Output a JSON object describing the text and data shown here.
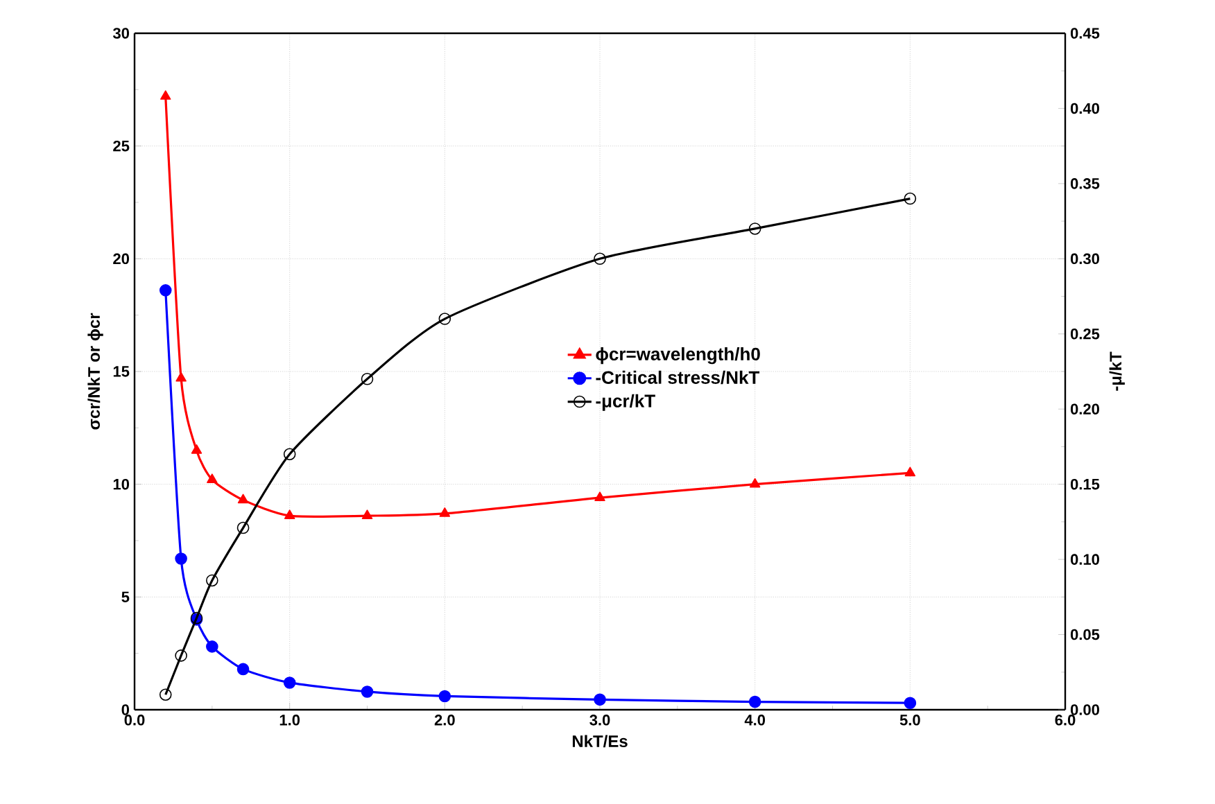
{
  "chart_data": {
    "type": "line",
    "xlabel": "NkT/Es",
    "ylabel": "σcr/NkT  or  ϕcr",
    "y2label": "-μ/kT",
    "xlim": [
      0,
      6
    ],
    "xticks": [
      {
        "value": 0,
        "label": "0.0"
      },
      {
        "value": 1,
        "label": "1.0"
      },
      {
        "value": 2,
        "label": "2.0"
      },
      {
        "value": 3,
        "label": "3.0"
      },
      {
        "value": 4,
        "label": "4.0"
      },
      {
        "value": 5,
        "label": "5.0"
      },
      {
        "value": 6,
        "label": "6.0"
      }
    ],
    "ylim": [
      0,
      30
    ],
    "yticks": [
      0,
      5,
      10,
      15,
      20,
      25,
      30
    ],
    "y2lim": [
      0,
      0.45
    ],
    "y2ticks": [
      {
        "value": 0,
        "label": "0.00"
      },
      {
        "value": 0.05,
        "label": "0.05"
      },
      {
        "value": 0.1,
        "label": "0.10"
      },
      {
        "value": 0.15,
        "label": "0.15"
      },
      {
        "value": 0.2,
        "label": "0.20"
      },
      {
        "value": 0.25,
        "label": "0.25"
      },
      {
        "value": 0.3,
        "label": "0.30"
      },
      {
        "value": 0.35,
        "label": "0.35"
      },
      {
        "value": 0.4,
        "label": "0.40"
      },
      {
        "value": 0.45,
        "label": "0.45"
      }
    ],
    "grid": true,
    "legend": "center",
    "line_style": "solid",
    "series": [
      {
        "name": "ϕcr=wavelength/h0",
        "color": "#ff0000",
        "marker": "triangle",
        "x": [
          0.2,
          0.3,
          0.4,
          0.5,
          0.7,
          1.0,
          1.5,
          2.0,
          3.0,
          4.0,
          5.0
        ],
        "values": [
          27.2,
          14.7,
          11.5,
          10.2,
          9.3,
          8.6,
          8.6,
          8.7,
          9.4,
          10.0,
          10.5
        ]
      },
      {
        "name": "-Critical stress/NkT",
        "color": "#0000ff",
        "marker": "circle",
        "x": [
          0.2,
          0.3,
          0.4,
          0.5,
          0.7,
          1.0,
          1.5,
          2.0,
          3.0,
          4.0,
          5.0
        ],
        "values": [
          18.6,
          6.7,
          4.0,
          2.8,
          1.8,
          1.2,
          0.8,
          0.6,
          0.45,
          0.35,
          0.3
        ]
      },
      {
        "name": "-μcr/kT",
        "color": "#000000",
        "marker": "circle",
        "axis": "y2",
        "x": [
          0.2,
          0.3,
          0.4,
          0.5,
          0.7,
          1.0,
          1.5,
          2.0,
          3.0,
          4.0,
          5.0
        ],
        "values": [
          0.01,
          0.036,
          0.061,
          0.086,
          0.121,
          0.17,
          0.22,
          0.26,
          0.3,
          0.32,
          0.34
        ]
      }
    ]
  }
}
